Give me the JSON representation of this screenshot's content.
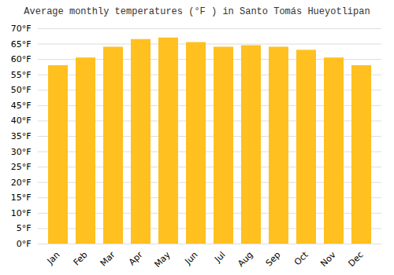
{
  "chart_data": {
    "type": "bar",
    "title": "Average monthly temperatures (°F ) in Santo Tomás Hueyotlipan",
    "categories": [
      "Jan",
      "Feb",
      "Mar",
      "Apr",
      "May",
      "Jun",
      "Jul",
      "Aug",
      "Sep",
      "Oct",
      "Nov",
      "Dec"
    ],
    "values": [
      58,
      60.5,
      64,
      66.5,
      67,
      65.5,
      64,
      64.5,
      64,
      63,
      60.5,
      58
    ],
    "color": "#FFC020",
    "ylim": [
      0,
      70
    ],
    "yticks": [
      {
        "value": 0,
        "label": "0°F"
      },
      {
        "value": 5,
        "label": "5°F"
      },
      {
        "value": 10,
        "label": "10°F"
      },
      {
        "value": 15,
        "label": "15°F"
      },
      {
        "value": 20,
        "label": "20°F"
      },
      {
        "value": 25,
        "label": "25°F"
      },
      {
        "value": 30,
        "label": "30°F"
      },
      {
        "value": 35,
        "label": "35°F"
      },
      {
        "value": 40,
        "label": "40°F"
      },
      {
        "value": 45,
        "label": "45°F"
      },
      {
        "value": 50,
        "label": "50°F"
      },
      {
        "value": 55,
        "label": "55°F"
      },
      {
        "value": 60,
        "label": "60°F"
      },
      {
        "value": 65,
        "label": "65°F"
      },
      {
        "value": 70,
        "label": "70°F"
      }
    ],
    "grid": true
  }
}
